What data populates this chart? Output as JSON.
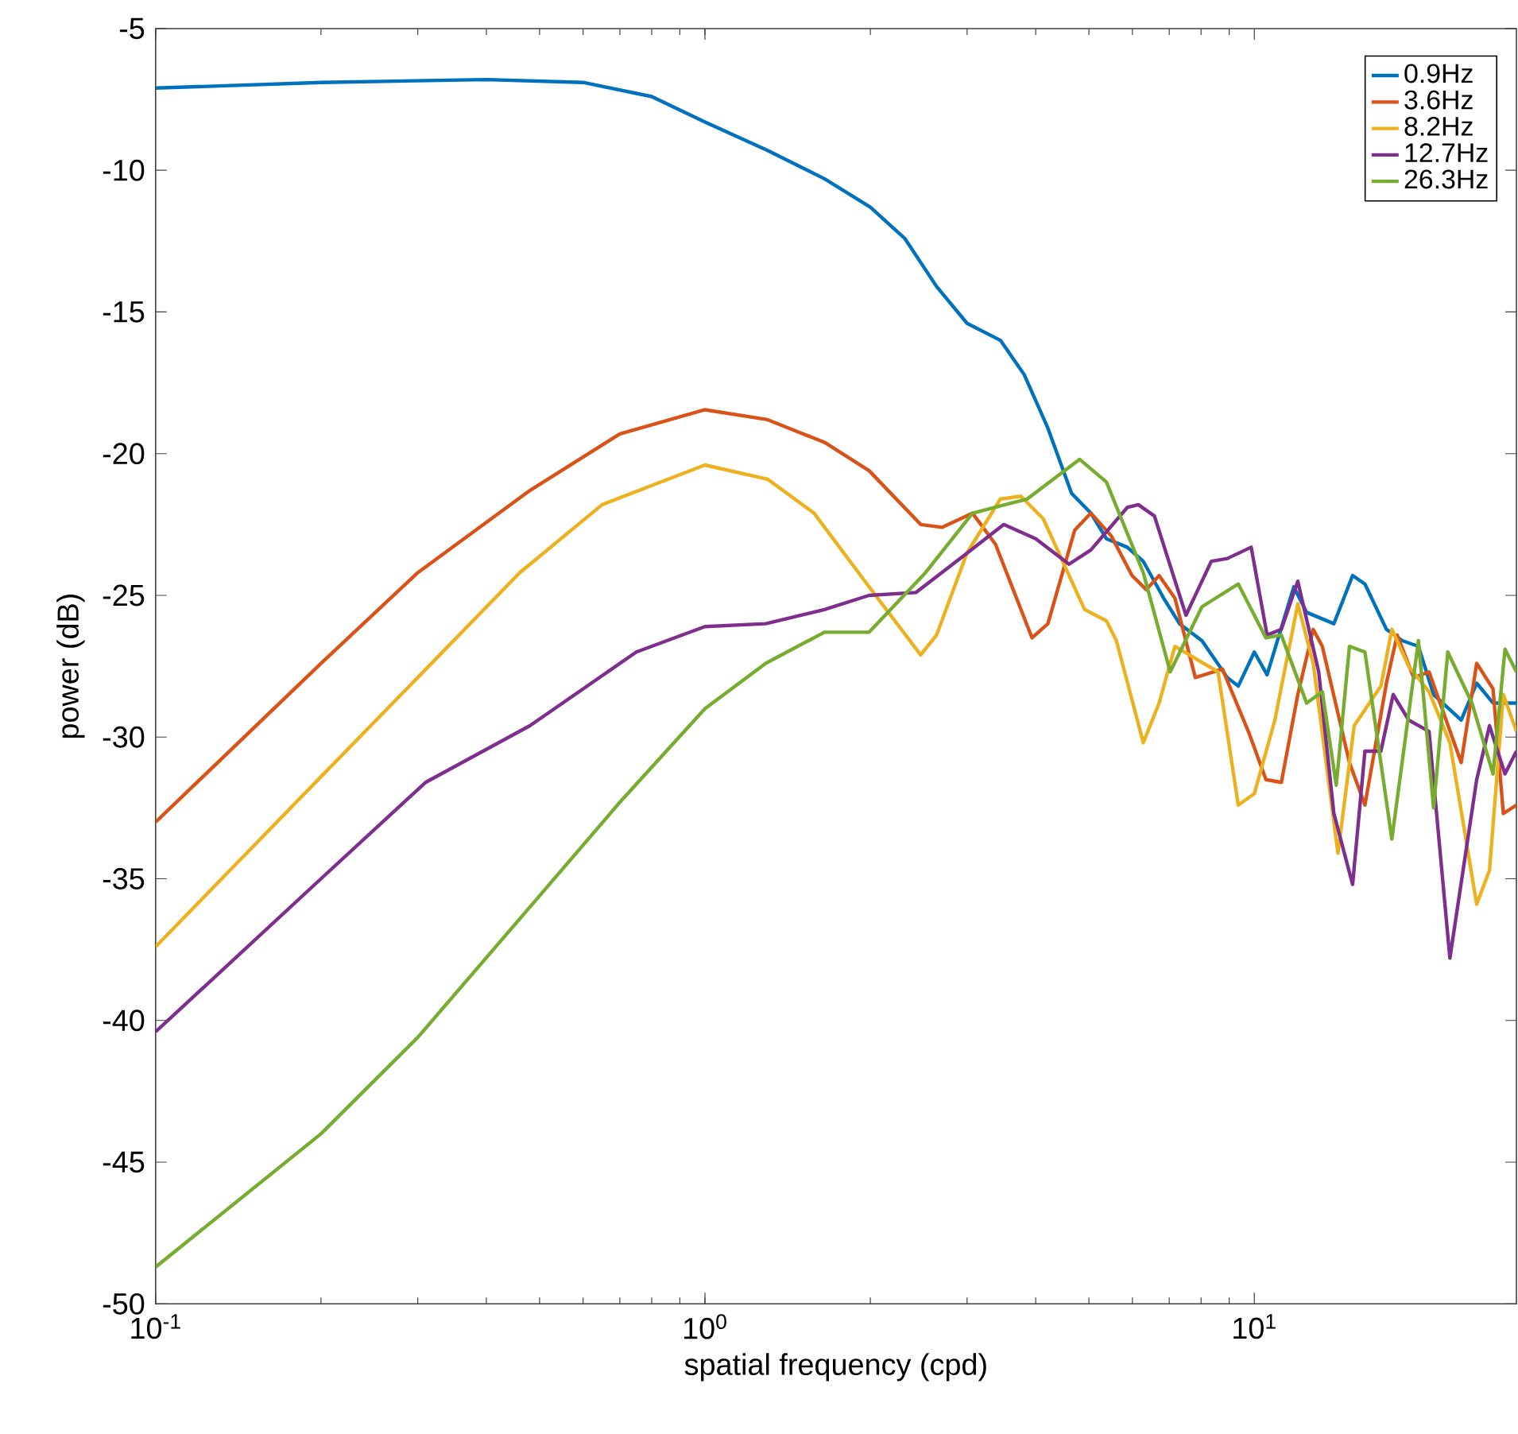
{
  "chart_data": {
    "type": "line",
    "xlabel": "spatial frequency (cpd)",
    "ylabel": "power (dB)",
    "log": "x",
    "xlim": [
      0.1,
      30
    ],
    "ylim": [
      -50,
      -5
    ],
    "xticks": [
      {
        "value": 0.1,
        "label": "10$^{-1}$"
      },
      {
        "value": 1,
        "label": "10$^{0}$"
      },
      {
        "value": 10,
        "label": "10$^{1}$"
      }
    ],
    "yticks": [
      -50,
      -45,
      -40,
      -35,
      -30,
      -25,
      -20,
      -15,
      -10,
      -5
    ],
    "legend": "top right",
    "series": [
      {
        "name": "0.9Hz",
        "color": "#0072bd",
        "x": [
          0.1,
          0.2,
          0.4,
          0.6,
          0.8,
          1.0,
          1.3,
          1.65,
          2,
          2.31,
          2.64,
          3.0,
          3.45,
          3.81,
          4.21,
          4.65,
          5.04,
          5.38,
          5.87,
          6.28,
          6.84,
          7.31,
          8.03,
          8.93,
          9.35,
          10,
          10.55,
          11.8,
          12.45,
          13.96,
          15.1,
          15.9,
          17.4,
          18.6,
          19.9,
          21.2,
          23.8,
          25.4,
          27.2,
          30
        ],
        "values": [
          -7.1,
          -6.9,
          -6.8,
          -6.9,
          -7.4,
          -8.3,
          -9.3,
          -10.3,
          -11.3,
          -12.4,
          -14.1,
          -15.4,
          -16.0,
          -17.2,
          -19.1,
          -21.4,
          -22.1,
          -23.0,
          -23.3,
          -23.8,
          -25.1,
          -26.0,
          -26.6,
          -27.9,
          -28.2,
          -27.0,
          -27.8,
          -24.7,
          -25.6,
          -26.0,
          -24.3,
          -24.6,
          -26.2,
          -26.6,
          -26.8,
          -28.5,
          -29.4,
          -28.1,
          -28.8,
          -28.8
        ]
      },
      {
        "name": "3.6Hz",
        "color": "#d95319",
        "x": [
          0.1,
          0.2,
          0.3,
          0.48,
          0.7,
          1.0,
          1.3,
          1.65,
          1.99,
          2.47,
          2.7,
          3.07,
          3.38,
          3.94,
          4.21,
          4.71,
          5.04,
          5.49,
          5.99,
          6.36,
          6.71,
          7.17,
          7.81,
          8.75,
          9.8,
          10.5,
          11.2,
          12.0,
          12.8,
          13.3,
          14.9,
          15.9,
          17.4,
          18.2,
          19.5,
          20.8,
          23.8,
          25.4,
          27.2,
          28.4,
          30
        ],
        "values": [
          -33.0,
          -27.4,
          -24.2,
          -21.3,
          -19.3,
          -18.45,
          -18.8,
          -19.6,
          -20.6,
          -22.5,
          -22.6,
          -22.1,
          -23.2,
          -26.5,
          -26.0,
          -22.7,
          -22.1,
          -22.9,
          -24.3,
          -24.8,
          -24.3,
          -25.1,
          -27.9,
          -27.6,
          -29.9,
          -31.5,
          -31.6,
          -28.5,
          -26.2,
          -26.8,
          -30.9,
          -32.4,
          -28.1,
          -26.4,
          -27.9,
          -27.7,
          -30.9,
          -27.4,
          -28.3,
          -32.7,
          -32.4
        ]
      },
      {
        "name": "8.2Hz",
        "color": "#edb120",
        "x": [
          0.1,
          0.2,
          0.3,
          0.46,
          0.65,
          1.0,
          1.3,
          1.58,
          1.99,
          2.47,
          2.64,
          3.0,
          3.45,
          3.76,
          4.13,
          4.91,
          5.38,
          5.61,
          6.28,
          6.71,
          7.17,
          8.59,
          9.35,
          10,
          10.9,
          12.0,
          12.8,
          14.2,
          15.2,
          17.0,
          17.8,
          19.1,
          20.8,
          22.7,
          25.4,
          26.8,
          28.4,
          30
        ],
        "values": [
          -37.4,
          -31.4,
          -27.9,
          -24.2,
          -21.8,
          -20.4,
          -20.9,
          -22.1,
          -24.7,
          -27.1,
          -26.4,
          -23.5,
          -21.6,
          -21.5,
          -22.3,
          -25.5,
          -25.9,
          -26.6,
          -30.2,
          -28.8,
          -26.8,
          -27.7,
          -32.4,
          -32.0,
          -29.4,
          -25.3,
          -27.4,
          -34.1,
          -29.6,
          -28.2,
          -26.2,
          -27.5,
          -28.4,
          -30.2,
          -35.9,
          -34.7,
          -28.5,
          -29.8
        ]
      },
      {
        "name": "12.7Hz",
        "color": "#7e2f8e",
        "x": [
          0.1,
          0.2,
          0.31,
          0.48,
          0.75,
          1.0,
          1.29,
          1.65,
          1.99,
          2.42,
          2.96,
          3.5,
          4.0,
          4.6,
          5.04,
          5.87,
          6.15,
          6.58,
          7.51,
          8.35,
          8.93,
          9.87,
          10.55,
          11.2,
          12.0,
          13.1,
          13.96,
          15.1,
          15.9,
          17.0,
          17.9,
          19.1,
          20.8,
          22.7,
          25.4,
          26.8,
          28.6,
          30
        ],
        "values": [
          -40.4,
          -35.0,
          -31.6,
          -29.6,
          -27.0,
          -26.1,
          -26.0,
          -25.5,
          -25.0,
          -24.9,
          -23.6,
          -22.5,
          -23.0,
          -23.9,
          -23.4,
          -21.9,
          -21.8,
          -22.2,
          -25.7,
          -23.8,
          -23.7,
          -23.3,
          -26.4,
          -26.2,
          -24.5,
          -27.7,
          -32.7,
          -35.2,
          -30.5,
          -30.5,
          -28.5,
          -29.4,
          -29.8,
          -37.8,
          -31.5,
          -29.6,
          -31.3,
          -30.5
        ]
      },
      {
        "name": "26.3Hz",
        "color": "#77ac30",
        "x": [
          0.1,
          0.2,
          0.3,
          0.5,
          0.7,
          1.0,
          1.29,
          1.65,
          1.99,
          2.52,
          3.07,
          3.86,
          4.81,
          5.38,
          6.28,
          7.03,
          8.03,
          9.35,
          10.5,
          11.2,
          12.45,
          13.3,
          14.1,
          14.9,
          15.9,
          17.8,
          19.9,
          21.2,
          22.5,
          24.9,
          27.2,
          28.6,
          30
        ],
        "values": [
          -48.7,
          -44.0,
          -40.6,
          -35.6,
          -32.3,
          -29.0,
          -27.4,
          -26.3,
          -26.3,
          -24.2,
          -22.1,
          -21.6,
          -20.2,
          -21.0,
          -24.2,
          -27.7,
          -25.4,
          -24.6,
          -26.5,
          -26.4,
          -28.8,
          -28.4,
          -31.7,
          -26.8,
          -27.0,
          -33.6,
          -26.6,
          -32.5,
          -27.0,
          -28.8,
          -31.3,
          -26.9,
          -27.7
        ]
      }
    ]
  }
}
